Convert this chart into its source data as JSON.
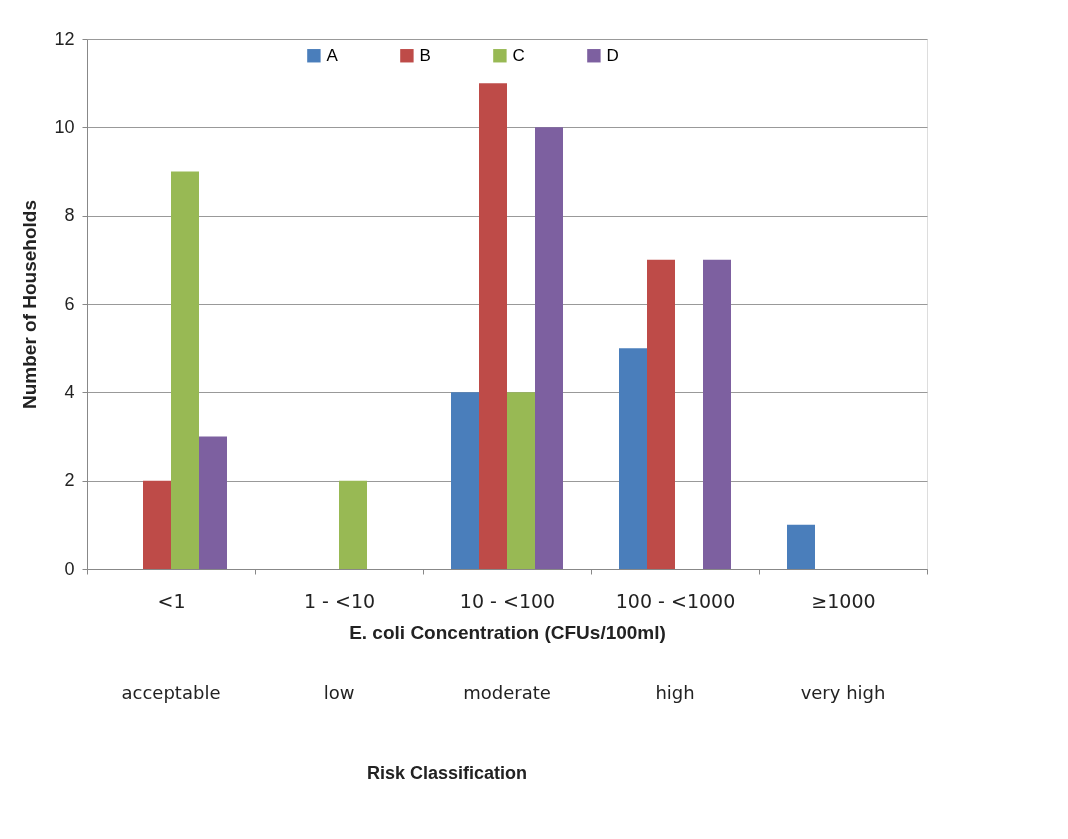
{
  "chart_data": {
    "type": "bar",
    "xlabel": "E. coli Concentration (CFUs/100ml)",
    "ylabel": "Number of Households",
    "categories": [
      "<1",
      "1 - <10",
      "10 - <100",
      "100 - <1000",
      "≥1000"
    ],
    "series": [
      {
        "name": "A",
        "color": "#4a7ebb",
        "values": [
          0,
          0,
          4,
          5,
          1
        ]
      },
      {
        "name": "B",
        "color": "#be4b48",
        "values": [
          2,
          0,
          11,
          7,
          0
        ]
      },
      {
        "name": "C",
        "color": "#98b954",
        "values": [
          9,
          2,
          4,
          0,
          0
        ]
      },
      {
        "name": "D",
        "color": "#7d60a0",
        "values": [
          3,
          0,
          10,
          7,
          0
        ]
      }
    ],
    "ylim": [
      0,
      12
    ],
    "yticks": [
      0,
      2,
      4,
      6,
      8,
      10,
      12
    ],
    "grid": "y",
    "legend": "top",
    "annotations": [
      "acceptable",
      "low",
      "moderate",
      "high",
      "very high",
      "Risk Classification"
    ]
  }
}
